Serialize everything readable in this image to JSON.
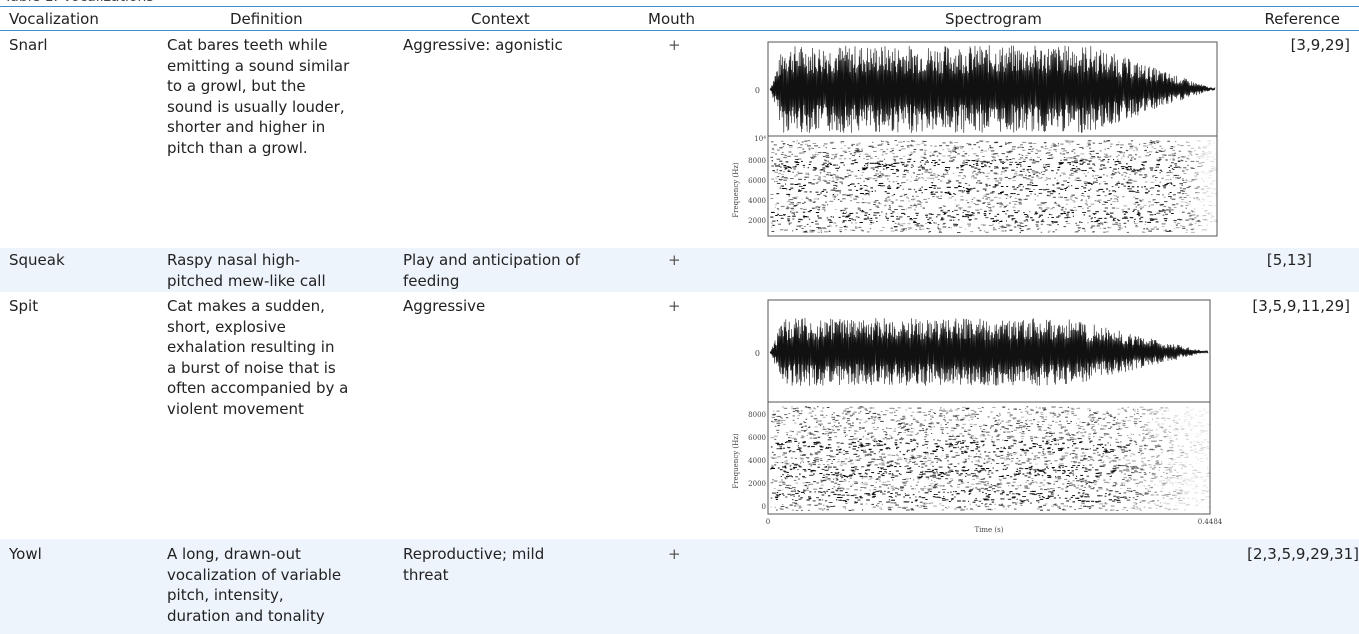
{
  "header": {
    "columns": [
      "Vocalization",
      "Definition",
      "Context",
      "Mouth",
      "Spectrogram",
      "Reference"
    ]
  },
  "rows": [
    {
      "vocalization": "Snarl",
      "definition": [
        "Cat bares teeth while",
        "emitting a sound similar",
        "to a growl, but the",
        "sound is usually louder,",
        "shorter and higher in",
        "pitch than a growl."
      ],
      "context": [
        "Aggressive: agonistic"
      ],
      "mouth": "+",
      "reference": "[3,9,29]",
      "spectrogram": {
        "freq_axis_label": "Frequency (Hz)",
        "freq_ticks": [
          "10⁴",
          "8000",
          "6000",
          "4000",
          "2000"
        ],
        "wave_zero_label": "0"
      }
    },
    {
      "vocalization": "Squeak",
      "definition": [
        "Raspy nasal high-",
        "pitched mew-like call"
      ],
      "context": [
        "Play and anticipation of",
        "feeding"
      ],
      "mouth": "+",
      "reference": "[5,13]"
    },
    {
      "vocalization": "Spit",
      "definition": [
        "Cat makes a sudden,",
        "short, explosive",
        "exhalation resulting in",
        "a burst of noise that is",
        "often accompanied by a",
        "violent movement"
      ],
      "context": [
        "Aggressive"
      ],
      "mouth": "+",
      "reference": "[3,5,9,11,29]",
      "spectrogram": {
        "freq_axis_label": "Frequency (Hz)",
        "freq_ticks": [
          "8000",
          "6000",
          "4000",
          "2000",
          "0"
        ],
        "wave_zero_label": "0",
        "time_axis_label": "Time (s)",
        "time_start": "0",
        "time_end": "0.4484"
      }
    },
    {
      "vocalization": "Yowl",
      "definition": [
        "A long, drawn-out",
        "vocalization of variable",
        "pitch, intensity,",
        "duration and tonality"
      ],
      "context": [
        "Reproductive; mild",
        "threat"
      ],
      "mouth": "+",
      "reference": "[2,3,5,9,29,31]"
    }
  ]
}
